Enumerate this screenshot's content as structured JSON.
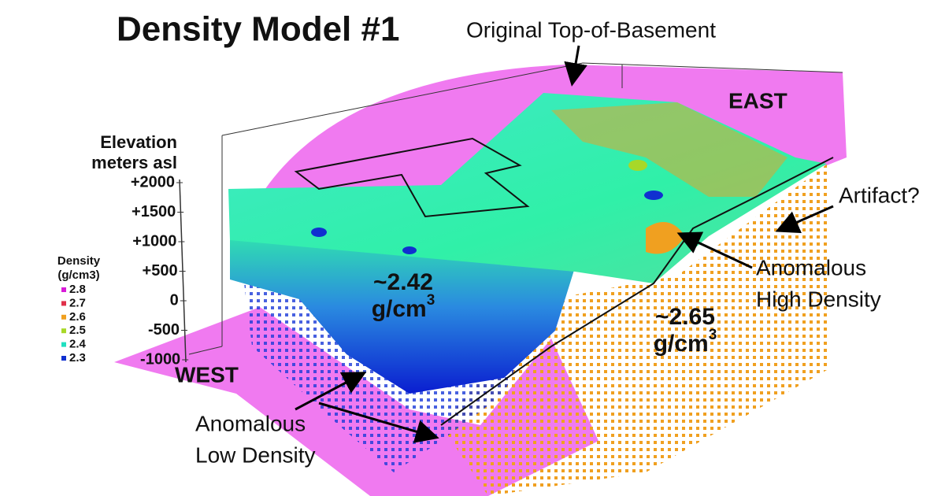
{
  "title": "Density Model #1",
  "annotations": {
    "top_of_basement": "Original Top-of-Basement",
    "artifact": "Artifact?",
    "high_density": [
      "Anomalous",
      "High Density"
    ],
    "low_density": [
      "Anomalous",
      "Low Density"
    ]
  },
  "directions": {
    "west": "WEST",
    "east": "EAST"
  },
  "axis": {
    "label": [
      "Elevation",
      "meters asl"
    ],
    "ticks": [
      "+2000",
      "+1500",
      "+1000",
      "+500",
      "0",
      "-500",
      "-1000"
    ]
  },
  "legend": {
    "title": [
      "Density",
      "(g/cm3)"
    ],
    "items": [
      {
        "label": "2.8",
        "color": "#d81bd8"
      },
      {
        "label": "2.7",
        "color": "#e0304a"
      },
      {
        "label": "2.6",
        "color": "#f0a020"
      },
      {
        "label": "2.5",
        "color": "#a8d828"
      },
      {
        "label": "2.4",
        "color": "#20e0c0"
      },
      {
        "label": "2.3",
        "color": "#1030d0"
      }
    ]
  },
  "density_labels": [
    {
      "value": "~2.42",
      "unit": "g/cm",
      "exponent": "3"
    },
    {
      "value": "~2.65",
      "unit": "g/cm",
      "exponent": "3"
    }
  ]
}
